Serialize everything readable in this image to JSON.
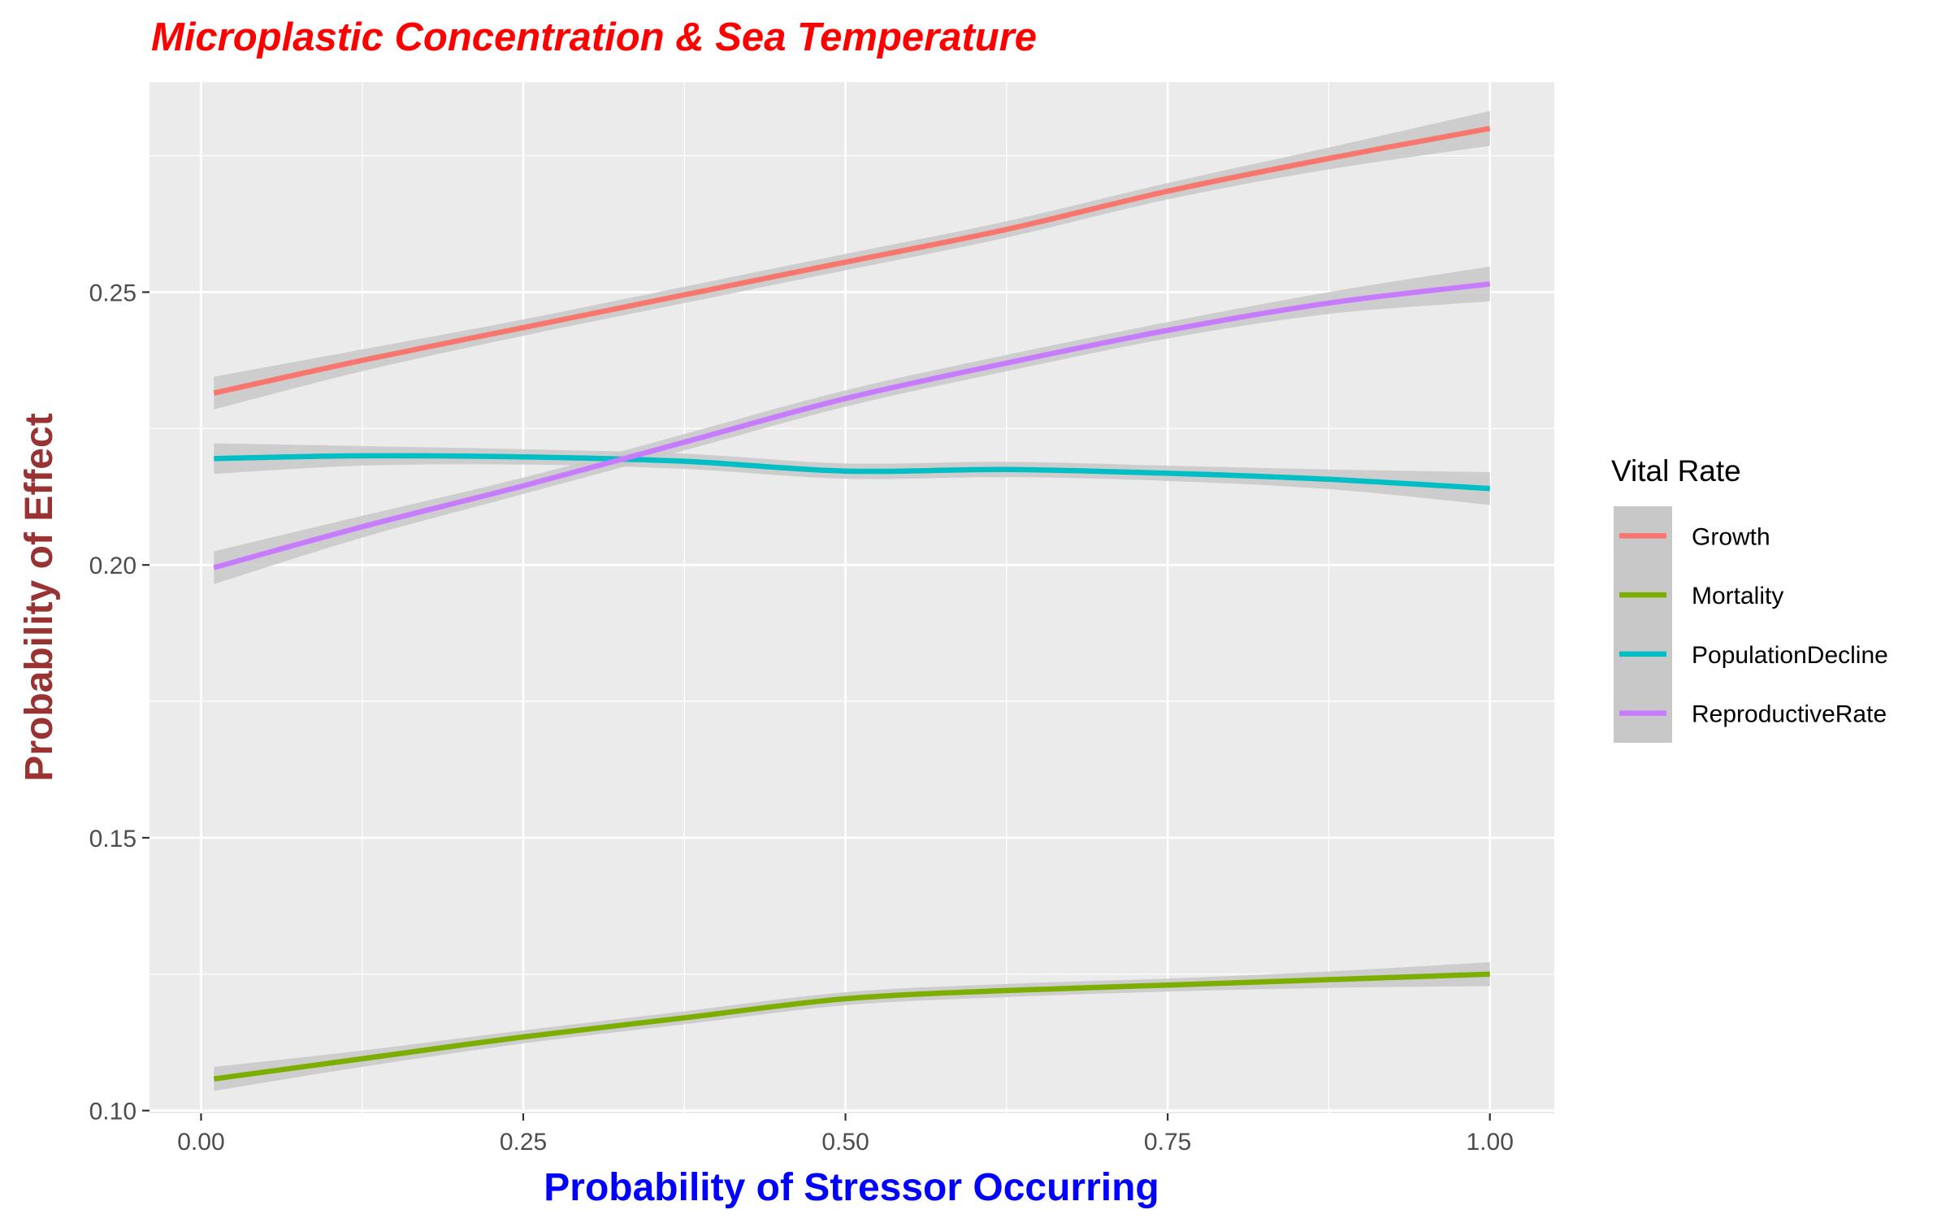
{
  "chart_data": {
    "type": "line",
    "title": "Microplastic Concentration & Sea Temperature",
    "xlabel": "Probability of Stressor Occurring",
    "ylabel": "Probability of Effect",
    "xlim": [
      -0.04,
      1.05
    ],
    "ylim": [
      0.0995,
      0.2885
    ],
    "x_ticks": [
      0.0,
      0.25,
      0.5,
      0.75,
      1.0
    ],
    "x_tick_labels": [
      "0.00",
      "0.25",
      "0.50",
      "0.75",
      "1.00"
    ],
    "y_ticks": [
      0.1,
      0.15,
      0.2,
      0.25
    ],
    "y_tick_labels": [
      "0.10",
      "0.15",
      "0.20",
      "0.25"
    ],
    "grid": true,
    "confidence_band": true,
    "legend": {
      "title": "Vital Rate",
      "position": "right"
    },
    "colors": {
      "title": "#ff0000",
      "xlabel": "#0000ff",
      "ylabel": "#993333",
      "panel_bg": "#ebebeb",
      "grid": "#ffffff",
      "band": "#c8c8c8",
      "tick_text": "#4d4d4d"
    },
    "series": [
      {
        "name": "Growth",
        "color": "#f8766d",
        "x": [
          0.01,
          0.125,
          0.25,
          0.375,
          0.5,
          0.625,
          0.75,
          0.875,
          1.0
        ],
        "y": [
          0.2315,
          0.2375,
          0.2435,
          0.2495,
          0.2555,
          0.2615,
          0.2685,
          0.2745,
          0.28
        ],
        "band": [
          0.003,
          0.002,
          0.0015,
          0.0015,
          0.0015,
          0.0015,
          0.0015,
          0.002,
          0.0032
        ]
      },
      {
        "name": "Mortality",
        "color": "#7cae00",
        "x": [
          0.01,
          0.125,
          0.25,
          0.375,
          0.5,
          0.625,
          0.75,
          0.875,
          1.0
        ],
        "y": [
          0.1058,
          0.1095,
          0.1135,
          0.117,
          0.1205,
          0.122,
          0.123,
          0.124,
          0.125
        ],
        "band": [
          0.0022,
          0.0015,
          0.0012,
          0.0012,
          0.0012,
          0.0012,
          0.0012,
          0.0015,
          0.0022
        ]
      },
      {
        "name": "PopulationDecline",
        "color": "#00bfc4",
        "x": [
          0.01,
          0.125,
          0.25,
          0.375,
          0.5,
          0.625,
          0.75,
          0.875,
          1.0
        ],
        "y": [
          0.2195,
          0.22,
          0.2198,
          0.219,
          0.2172,
          0.2175,
          0.2168,
          0.2157,
          0.214
        ],
        "band": [
          0.0028,
          0.0018,
          0.0014,
          0.0014,
          0.0014,
          0.0014,
          0.0014,
          0.0018,
          0.003
        ]
      },
      {
        "name": "ReproductiveRate",
        "color": "#c77cff",
        "x": [
          0.01,
          0.125,
          0.25,
          0.375,
          0.5,
          0.625,
          0.75,
          0.875,
          1.0
        ],
        "y": [
          0.1995,
          0.207,
          0.2145,
          0.2225,
          0.2305,
          0.237,
          0.243,
          0.248,
          0.2515
        ],
        "band": [
          0.003,
          0.002,
          0.0015,
          0.0015,
          0.0015,
          0.0015,
          0.0015,
          0.002,
          0.0032
        ]
      }
    ]
  }
}
